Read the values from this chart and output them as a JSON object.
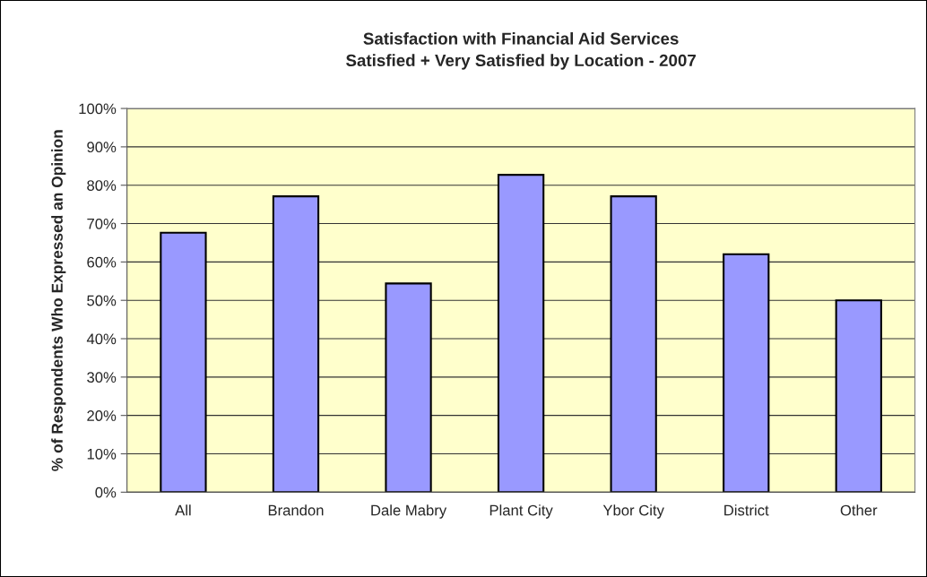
{
  "chart_data": {
    "type": "bar",
    "title": "Satisfaction with Financial Aid Services\nSatisfied + Very Satisfied by Location - 2007",
    "ylabel": "% of Respondents Who Expressed an Opinion",
    "categories": [
      "All",
      "Brandon",
      "Dale Mabry",
      "Plant City",
      "Ybor City",
      "District",
      "Other"
    ],
    "values": [
      67.6,
      77.1,
      54.4,
      82.7,
      77.1,
      62.0,
      50.0
    ],
    "color": "#9999ff",
    "ylim": [
      0,
      100
    ],
    "yticks": [
      {
        "value": 0,
        "label": "0%"
      },
      {
        "value": 10,
        "label": "10%"
      },
      {
        "value": 20,
        "label": "20%"
      },
      {
        "value": 30,
        "label": "30%"
      },
      {
        "value": 40,
        "label": "40%"
      },
      {
        "value": 50,
        "label": "50%"
      },
      {
        "value": 60,
        "label": "60%"
      },
      {
        "value": 70,
        "label": "70%"
      },
      {
        "value": 80,
        "label": "80%"
      },
      {
        "value": 90,
        "label": "90%"
      },
      {
        "value": 100,
        "label": "100%"
      }
    ],
    "grid": "y"
  }
}
